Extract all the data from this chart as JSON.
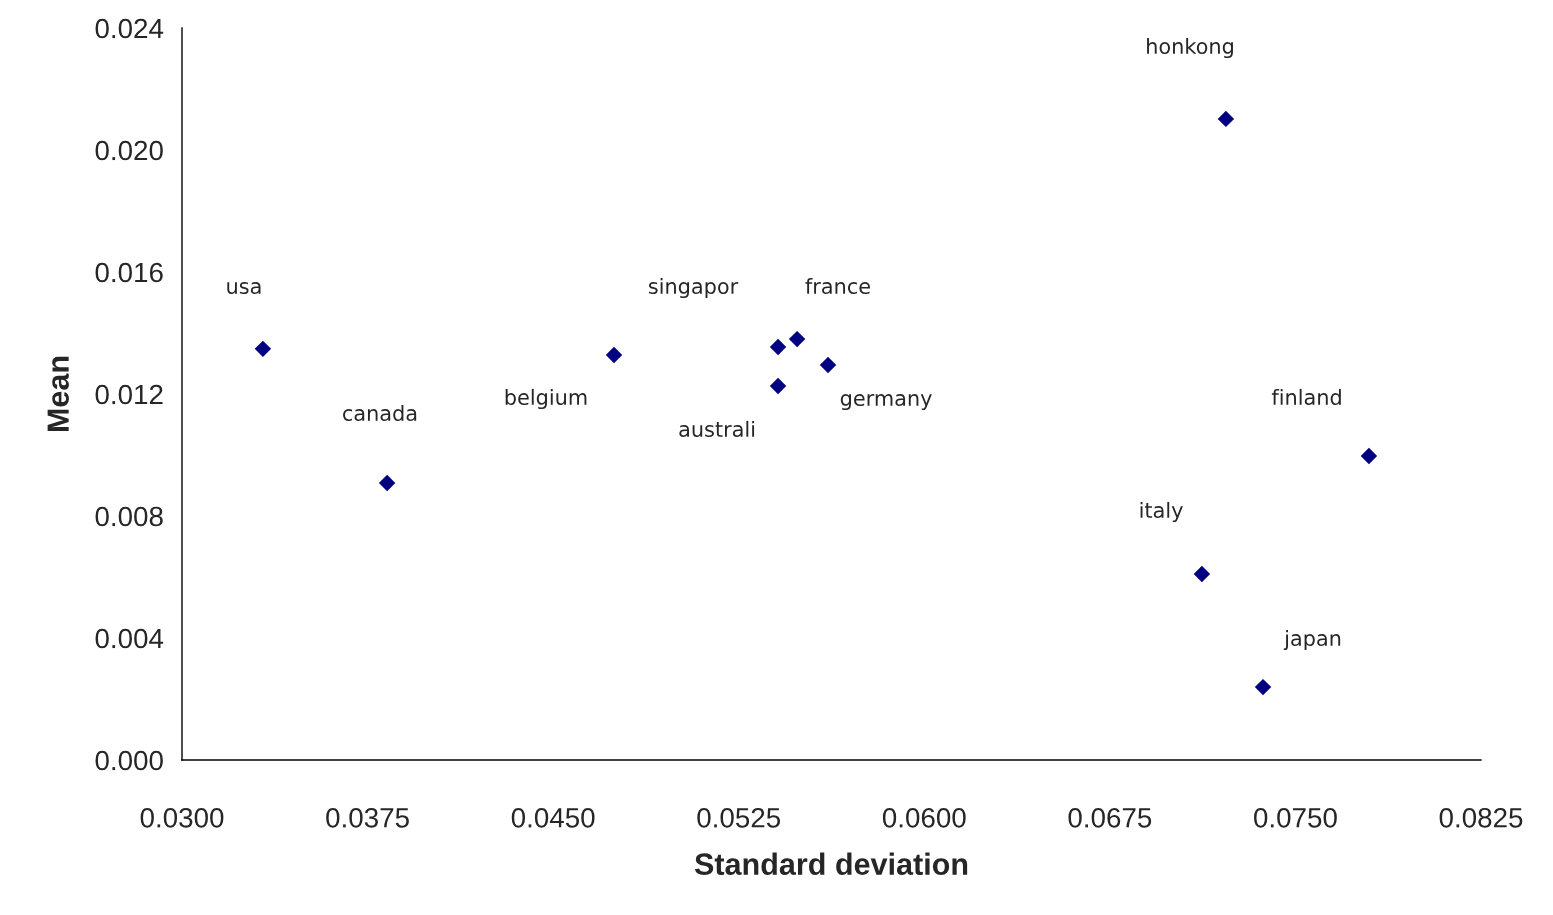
{
  "chart_data": {
    "type": "scatter",
    "xlabel": "Standard deviation",
    "ylabel": "Mean",
    "marker": "diamond",
    "grid": false,
    "legend": false,
    "series": [
      {
        "color": "#000080",
        "x": [
          0.03327,
          0.03829,
          0.04746,
          0.05409,
          0.05409,
          0.05486,
          0.05611,
          0.07219,
          0.07122,
          0.07369,
          0.07797
        ],
        "values": [
          0.01348,
          0.00908,
          0.01328,
          0.01354,
          0.01226,
          0.0138,
          0.01295,
          0.02102,
          0.0061,
          0.00239,
          0.00997
        ]
      }
    ],
    "xlim": [
      0.03,
      0.0825
    ],
    "ylim": [
      0,
      0.024
    ],
    "xticks": [
      {
        "value": 0.03,
        "label": "0.0300"
      },
      {
        "value": 0.0375,
        "label": "0.0375"
      },
      {
        "value": 0.045,
        "label": "0.0450"
      },
      {
        "value": 0.0525,
        "label": "0.0525"
      },
      {
        "value": 0.06,
        "label": "0.0600"
      },
      {
        "value": 0.0675,
        "label": "0.0675"
      },
      {
        "value": 0.075,
        "label": "0.0750"
      },
      {
        "value": 0.0825,
        "label": "0.0825"
      }
    ],
    "yticks": [
      {
        "value": 0,
        "label": "0.000"
      },
      {
        "value": 0.004,
        "label": "0.004"
      },
      {
        "value": 0.008,
        "label": "0.008"
      },
      {
        "value": 0.012,
        "label": "0.012"
      },
      {
        "value": 0.016,
        "label": "0.016"
      },
      {
        "value": 0.02,
        "label": "0.020"
      },
      {
        "value": 0.024,
        "label": "0.024"
      }
    ],
    "annotations": [
      "usa",
      "canada",
      "belgium",
      "singapor",
      "australi",
      "france",
      "germany",
      "honkong",
      "italy",
      "japan",
      "finland"
    ]
  }
}
